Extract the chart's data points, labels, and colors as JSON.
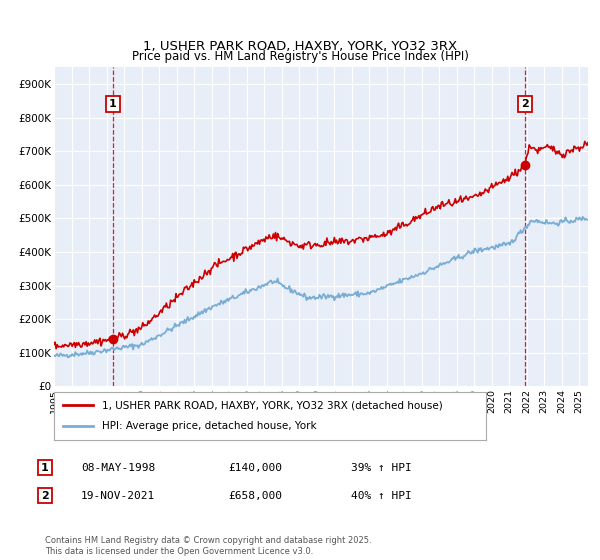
{
  "title": "1, USHER PARK ROAD, HAXBY, YORK, YO32 3RX",
  "subtitle": "Price paid vs. HM Land Registry's House Price Index (HPI)",
  "hpi_label": "HPI: Average price, detached house, York",
  "property_label": "1, USHER PARK ROAD, HAXBY, YORK, YO32 3RX (detached house)",
  "annotation1_date": "08-MAY-1998",
  "annotation1_price": "£140,000",
  "annotation1_hpi": "39% ↑ HPI",
  "annotation2_date": "19-NOV-2021",
  "annotation2_price": "£658,000",
  "annotation2_hpi": "40% ↑ HPI",
  "sale1_x": 1998.36,
  "sale1_y": 140000,
  "sale2_x": 2021.89,
  "sale2_y": 658000,
  "vline1_x": 1998.36,
  "vline2_x": 2021.89,
  "num1_y": 840000,
  "num2_y": 840000,
  "xlim": [
    1995.0,
    2025.5
  ],
  "ylim": [
    0,
    950000
  ],
  "yticks": [
    0,
    100000,
    200000,
    300000,
    400000,
    500000,
    600000,
    700000,
    800000,
    900000
  ],
  "ytick_labels": [
    "£0",
    "£100K",
    "£200K",
    "£300K",
    "£400K",
    "£500K",
    "£600K",
    "£700K",
    "£800K",
    "£900K"
  ],
  "xticks": [
    1995,
    1996,
    1997,
    1998,
    1999,
    2000,
    2001,
    2002,
    2003,
    2004,
    2005,
    2006,
    2007,
    2008,
    2009,
    2010,
    2011,
    2012,
    2013,
    2014,
    2015,
    2016,
    2017,
    2018,
    2019,
    2020,
    2021,
    2022,
    2023,
    2024,
    2025
  ],
  "bg_color": "#e8eef8",
  "property_line_color": "#cc0000",
  "hpi_line_color": "#7aadd4",
  "vline_color": "#cc0000",
  "marker_color": "#cc0000",
  "grid_color": "#ffffff",
  "footer_text": "Contains HM Land Registry data © Crown copyright and database right 2025.\nThis data is licensed under the Open Government Licence v3.0."
}
